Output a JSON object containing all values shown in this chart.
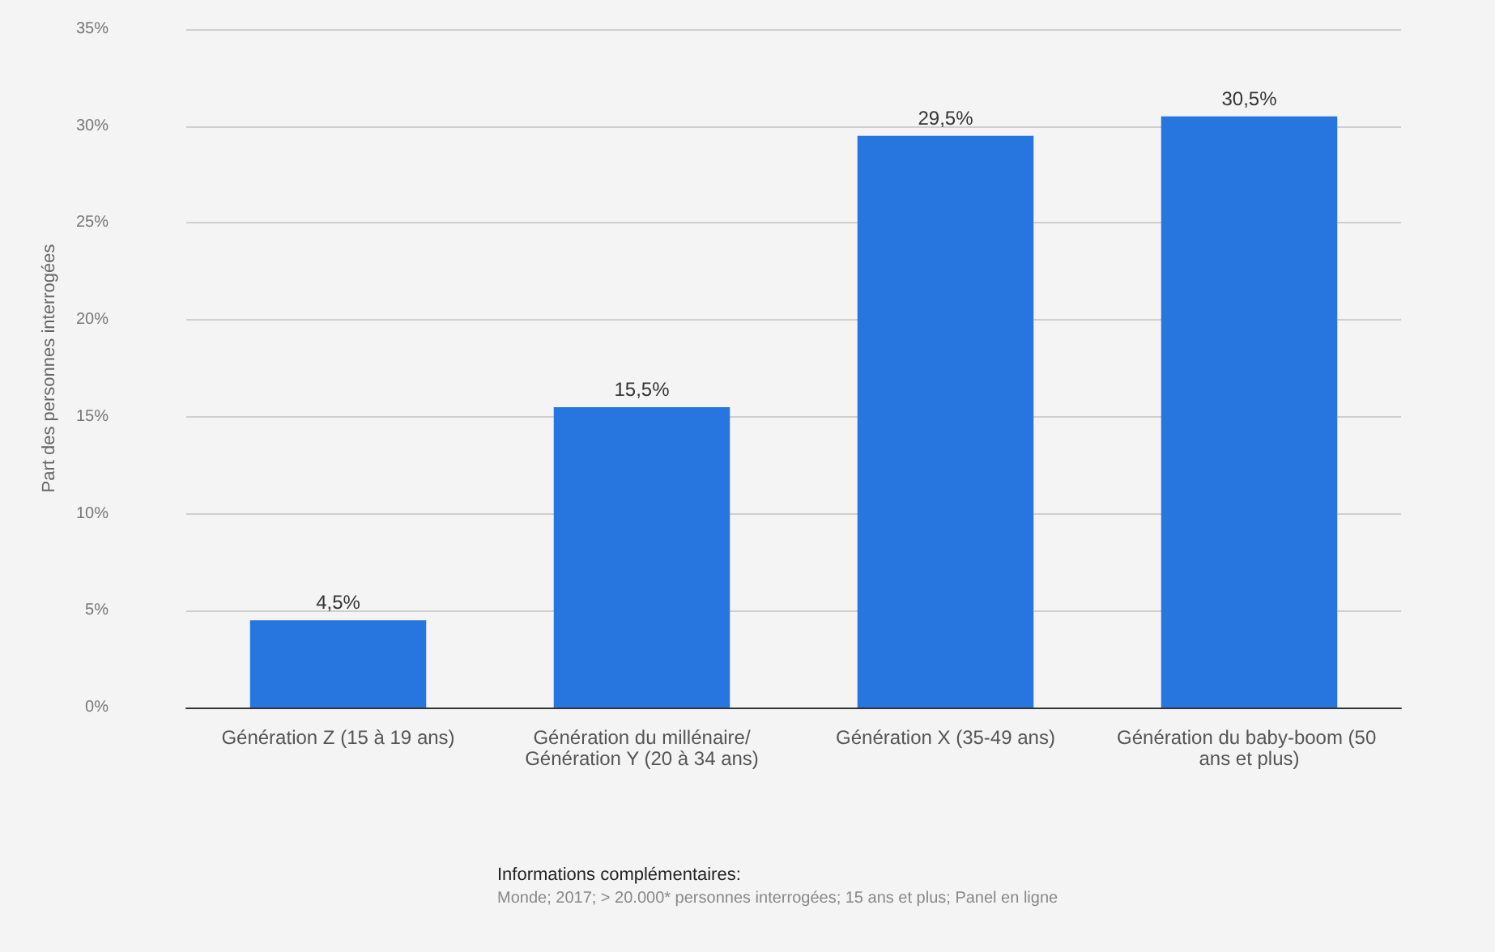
{
  "chart_data": {
    "type": "bar",
    "ylabel": "Part des personnes interrogées",
    "categories": [
      "Génération Z (15 à 19 ans)",
      "Génération du millénaire/Génération Y (20 à 34 ans)",
      "Génération X (35-49 ans)",
      "Génération du baby-boom (50 ans et plus)"
    ],
    "values": [
      4.5,
      15.5,
      29.5,
      30.5
    ],
    "value_labels": [
      "4,5%",
      "15,5%",
      "29,5%",
      "30,5%"
    ],
    "color": "#2775de",
    "ylim": [
      0,
      35
    ],
    "yticks": [
      {
        "value": 0,
        "label": "0%"
      },
      {
        "value": 5,
        "label": "5%"
      },
      {
        "value": 10,
        "label": "10%"
      },
      {
        "value": 15,
        "label": "15%"
      },
      {
        "value": 20,
        "label": "20%"
      },
      {
        "value": 25,
        "label": "25%"
      },
      {
        "value": 30,
        "label": "30%"
      },
      {
        "value": 35,
        "label": "35%"
      }
    ],
    "grid": "y",
    "annotations": [
      "Informations complémentaires:",
      "Monde; 2017; > 20.000* personnes interrogées; 15 ans et plus; Panel en ligne"
    ]
  }
}
